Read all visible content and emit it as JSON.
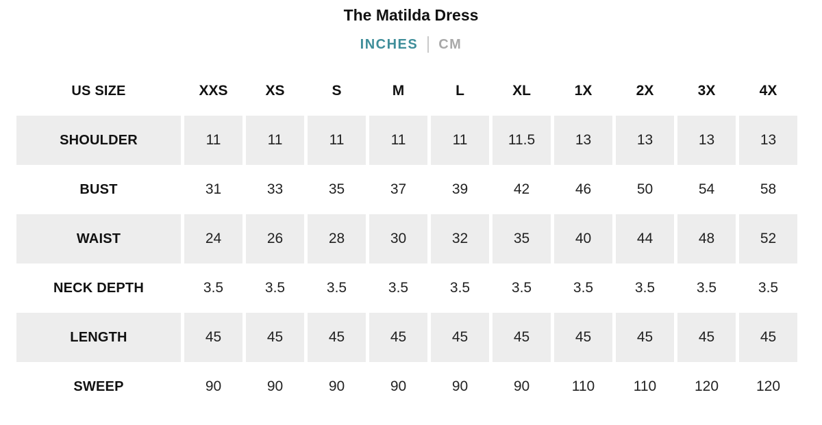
{
  "header": {
    "title": "The Matilda Dress",
    "unit_toggle": {
      "inches_label": "INCHES",
      "cm_label": "CM",
      "selected_unit": "INCHES"
    }
  },
  "colors": {
    "accent_teal": "#3f8e9a",
    "inactive_unit_gray": "#a9a9a9",
    "row_shade_gray": "#ededed",
    "text_black": "#111111"
  },
  "table": {
    "corner_label": "US SIZE",
    "sizes": [
      "XXS",
      "XS",
      "S",
      "M",
      "L",
      "XL",
      "1X",
      "2X",
      "3X",
      "4X"
    ],
    "rows": [
      {
        "label": "SHOULDER",
        "values": [
          "11",
          "11",
          "11",
          "11",
          "11",
          "11.5",
          "13",
          "13",
          "13",
          "13"
        ]
      },
      {
        "label": "BUST",
        "values": [
          "31",
          "33",
          "35",
          "37",
          "39",
          "42",
          "46",
          "50",
          "54",
          "58"
        ]
      },
      {
        "label": "WAIST",
        "values": [
          "24",
          "26",
          "28",
          "30",
          "32",
          "35",
          "40",
          "44",
          "48",
          "52"
        ]
      },
      {
        "label": "NECK DEPTH",
        "values": [
          "3.5",
          "3.5",
          "3.5",
          "3.5",
          "3.5",
          "3.5",
          "3.5",
          "3.5",
          "3.5",
          "3.5"
        ]
      },
      {
        "label": "LENGTH",
        "values": [
          "45",
          "45",
          "45",
          "45",
          "45",
          "45",
          "45",
          "45",
          "45",
          "45"
        ]
      },
      {
        "label": "SWEEP",
        "values": [
          "90",
          "90",
          "90",
          "90",
          "90",
          "90",
          "110",
          "110",
          "120",
          "120"
        ]
      }
    ]
  }
}
